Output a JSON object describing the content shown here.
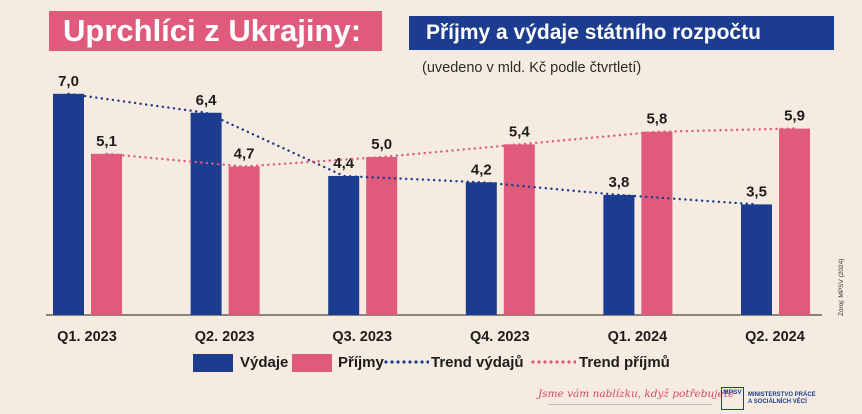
{
  "header": {
    "title": "Uprchlíci z Ukrajiny:",
    "subtitle": "Příjmy a výdaje státního rozpočtu",
    "units": "(uvedeno v mld. Kč podle čtvrtletí)"
  },
  "source": "Zdroj: MPSV (2024)",
  "chart_data": {
    "type": "bar",
    "categories": [
      "Q1. 2023",
      "Q2. 2023",
      "Q3. 2023",
      "Q4. 2023",
      "Q1. 2024",
      "Q2. 2024"
    ],
    "series": [
      {
        "name": "Výdaje",
        "color": "#1c3d8f",
        "values": [
          7.0,
          6.4,
          4.4,
          4.2,
          3.8,
          3.5
        ],
        "labels": [
          "7,0",
          "6,4",
          "4,4",
          "4,2",
          "3,8",
          "3,5"
        ]
      },
      {
        "name": "Příjmy",
        "color": "#e05a7c",
        "values": [
          5.1,
          4.7,
          5.0,
          5.4,
          5.8,
          5.9
        ],
        "labels": [
          "5,1",
          "4,7",
          "5,0",
          "5,4",
          "5,8",
          "5,9"
        ]
      }
    ],
    "trends": [
      {
        "name": "Trend výdajů",
        "color": "#1c3d8f",
        "style": "dotted",
        "values": [
          7.0,
          6.4,
          4.4,
          4.2,
          3.8,
          3.5
        ]
      },
      {
        "name": "Trend příjmů",
        "color": "#e05a7c",
        "style": "dotted",
        "values": [
          5.1,
          4.7,
          5.0,
          5.4,
          5.8,
          5.9
        ]
      }
    ],
    "ylim": [
      0,
      7.0
    ],
    "grid": false,
    "legend_position": "bottom"
  },
  "footer": {
    "slogan": "Jsme vám nablízku, když potřebujete",
    "logo_text": "MPSV",
    "ministry_line1": "MINISTERSTVO PRÁCE",
    "ministry_line2": "A SOCIÁLNÍCH VĚCÍ"
  }
}
